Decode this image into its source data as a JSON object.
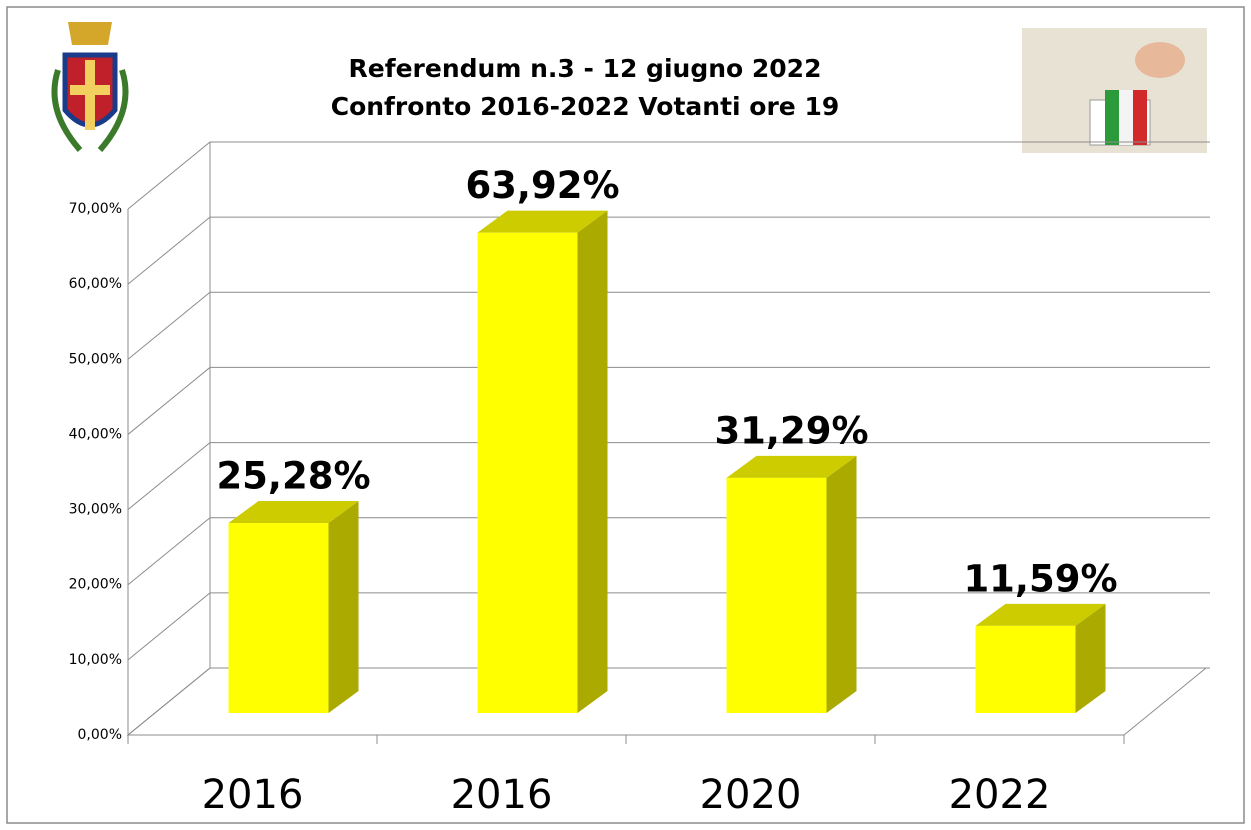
{
  "chart_data": {
    "type": "bar3d",
    "title": "Referendum n.3 - 12 giugno 2022",
    "subtitle": "Confronto 2016-2022  Votanti ore 19",
    "categories": [
      "2016",
      "2016",
      "2020",
      "2022"
    ],
    "values": [
      25.28,
      63.92,
      31.29,
      11.59
    ],
    "value_labels": [
      "25,28%",
      "63,92%",
      "31,29%",
      "11,59%"
    ],
    "color": "#ffff00",
    "ylim": [
      0,
      70
    ],
    "yticks": [
      {
        "value": 0,
        "label": "0,00%"
      },
      {
        "value": 10,
        "label": "10,00%"
      },
      {
        "value": 20,
        "label": "20,00%"
      },
      {
        "value": 30,
        "label": "30,00%"
      },
      {
        "value": 40,
        "label": "40,00%"
      },
      {
        "value": 50,
        "label": "50,00%"
      },
      {
        "value": 60,
        "label": "60,00%"
      },
      {
        "value": 70,
        "label": "70,00%"
      }
    ],
    "grid": true
  }
}
